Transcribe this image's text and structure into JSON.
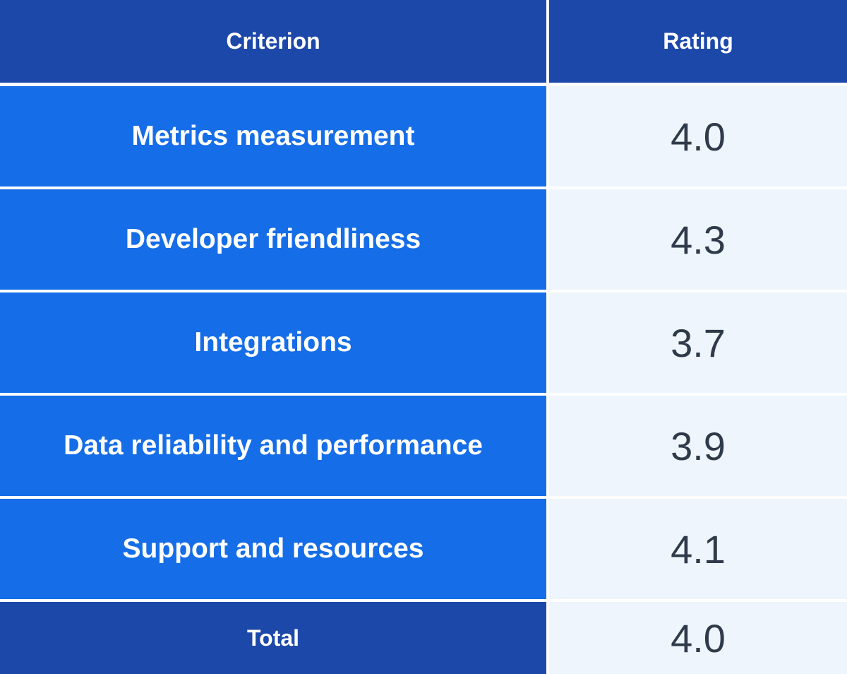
{
  "table": {
    "header": {
      "criterion": "Criterion",
      "rating": "Rating"
    },
    "rows": [
      {
        "criterion": "Metrics measurement",
        "rating": "4.0"
      },
      {
        "criterion": "Developer friendliness",
        "rating": "4.3"
      },
      {
        "criterion": "Integrations",
        "rating": "3.7"
      },
      {
        "criterion": "Data reliability and performance",
        "rating": "3.9"
      },
      {
        "criterion": "Support and resources",
        "rating": "4.1"
      }
    ],
    "total": {
      "criterion": "Total",
      "rating": "4.0"
    }
  },
  "colors": {
    "header_bg": "#1c48aa",
    "row_bg": "#166de8",
    "rating_bg": "#eef5fc",
    "rating_text": "#2f3a4a"
  }
}
